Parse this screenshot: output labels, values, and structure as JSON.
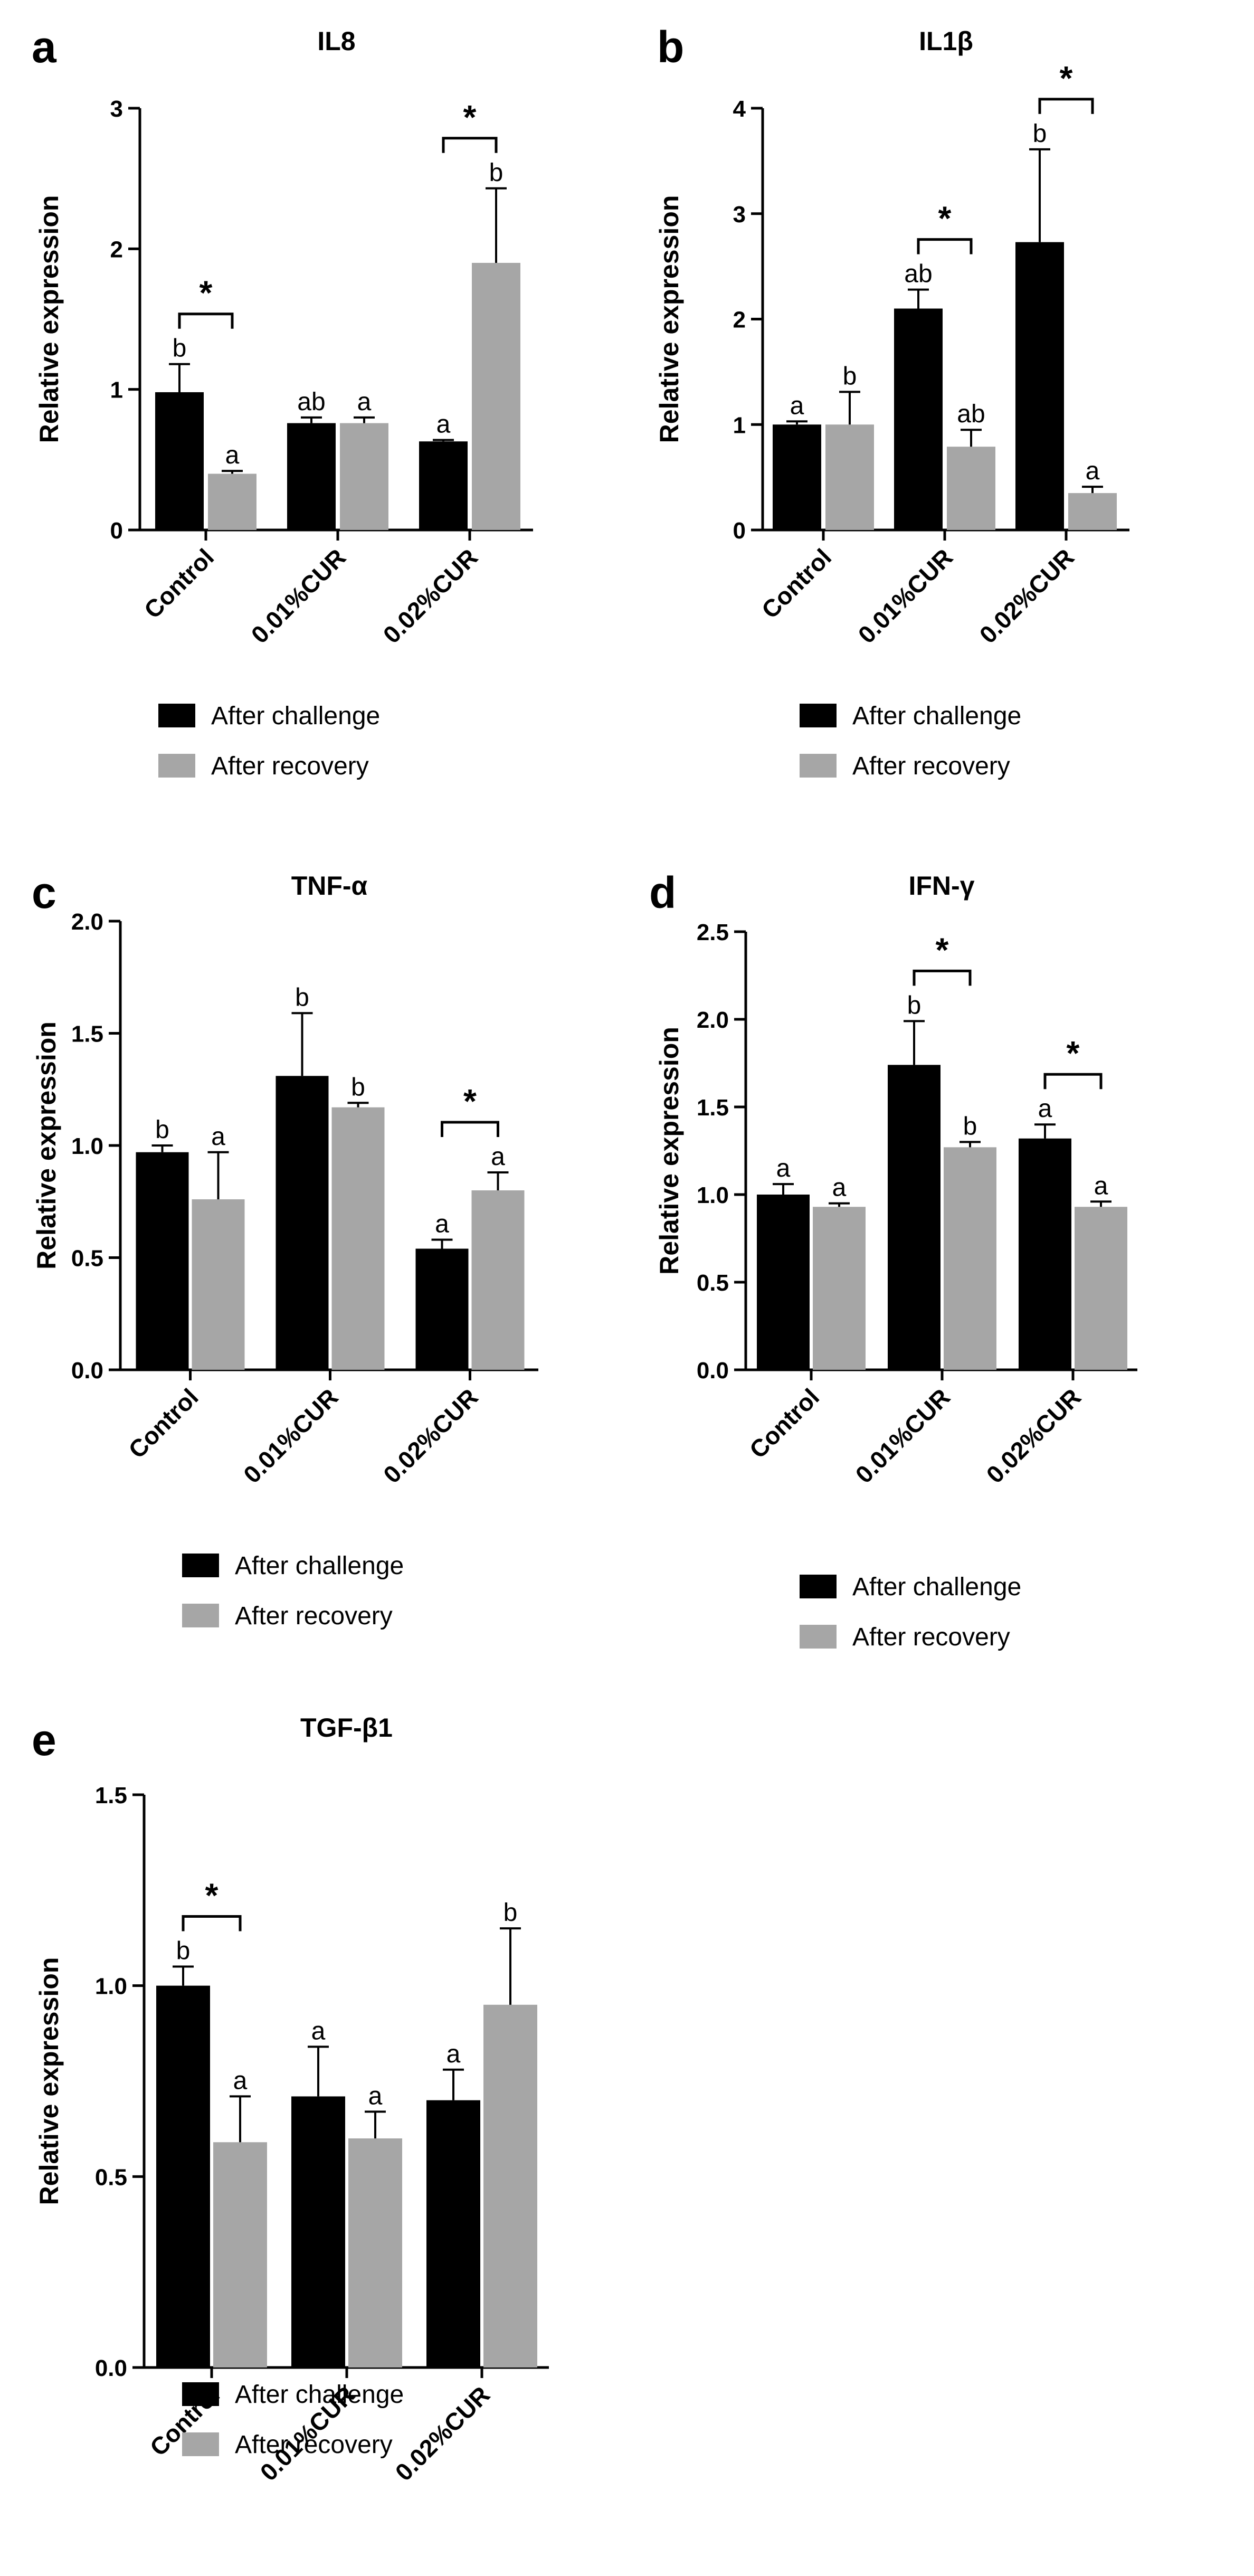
{
  "figure": {
    "xlabel_default": "",
    "legend_labels": [
      "After challenge",
      "After recovery"
    ]
  },
  "colors": {
    "after_challenge": "#000000",
    "after_recovery": "#a6a6a6",
    "axis": "#000000",
    "text": "#000000"
  },
  "chart_data": [
    {
      "panel": "a",
      "type": "bar",
      "title": "IL8",
      "ylabel": "Relative expression",
      "xlabel": "",
      "ylim": [
        0,
        3
      ],
      "yticks": [
        0,
        1,
        2,
        3
      ],
      "categories": [
        "Control",
        "0.01%CUR",
        "0.02%CUR"
      ],
      "series": [
        {
          "name": "After challenge",
          "values": [
            0.98,
            0.76,
            0.63
          ],
          "errors": [
            0.2,
            0.04,
            0.01
          ],
          "letters": [
            "b",
            "ab",
            "a"
          ]
        },
        {
          "name": "After recovery",
          "values": [
            0.4,
            0.76,
            1.9
          ],
          "errors": [
            0.02,
            0.04,
            0.53
          ],
          "letters": [
            "a",
            "a",
            "b"
          ]
        }
      ],
      "significance": [
        {
          "category": "Control",
          "label": "*"
        },
        {
          "category": "0.02%CUR",
          "label": "*"
        }
      ],
      "legend": [
        "After challenge",
        "After recovery"
      ]
    },
    {
      "panel": "b",
      "type": "bar",
      "title": "IL1β",
      "ylabel": "Relative expression",
      "xlabel": "",
      "ylim": [
        0,
        4
      ],
      "yticks": [
        0,
        1,
        2,
        3,
        4
      ],
      "categories": [
        "Control",
        "0.01%CUR",
        "0.02%CUR"
      ],
      "series": [
        {
          "name": "After challenge",
          "values": [
            1.0,
            2.1,
            2.73
          ],
          "errors": [
            0.03,
            0.18,
            0.88
          ],
          "letters": [
            "a",
            "ab",
            "b"
          ]
        },
        {
          "name": "After recovery",
          "values": [
            1.0,
            0.79,
            0.35
          ],
          "errors": [
            0.31,
            0.16,
            0.06
          ],
          "letters": [
            "b",
            "ab",
            "a"
          ]
        }
      ],
      "significance": [
        {
          "category": "0.01%CUR",
          "label": "*"
        },
        {
          "category": "0.02%CUR",
          "label": "*"
        }
      ],
      "legend": [
        "After challenge",
        "After recovery"
      ]
    },
    {
      "panel": "c",
      "type": "bar",
      "title": "TNF-α",
      "ylabel": "Relative expression",
      "xlabel": "",
      "ylim": [
        0,
        2
      ],
      "yticks": [
        "0.0",
        "0.5",
        "1.0",
        "1.5",
        "2.0"
      ],
      "categories": [
        "Control",
        "0.01%CUR",
        "0.02%CUR"
      ],
      "series": [
        {
          "name": "After challenge",
          "values": [
            0.97,
            1.31,
            0.54
          ],
          "errors": [
            0.03,
            0.28,
            0.04
          ],
          "letters": [
            "b",
            "b",
            "a"
          ]
        },
        {
          "name": "After recovery",
          "values": [
            0.76,
            1.17,
            0.8
          ],
          "errors": [
            0.21,
            0.02,
            0.08
          ],
          "letters": [
            "a",
            "b",
            "a"
          ]
        }
      ],
      "significance": [
        {
          "category": "0.02%CUR",
          "label": "*"
        }
      ],
      "legend": [
        "After challenge",
        "After recovery"
      ]
    },
    {
      "panel": "d",
      "type": "bar",
      "title": "IFN-γ",
      "ylabel": "Relative expression",
      "xlabel": "",
      "ylim": [
        0,
        2.5
      ],
      "yticks": [
        "0.0",
        "0.5",
        "1.0",
        "1.5",
        "2.0",
        "2.5"
      ],
      "categories": [
        "Control",
        "0.01%CUR",
        "0.02%CUR"
      ],
      "series": [
        {
          "name": "After challenge",
          "values": [
            1.0,
            1.74,
            1.32
          ],
          "errors": [
            0.06,
            0.25,
            0.08
          ],
          "letters": [
            "a",
            "b",
            "a"
          ]
        },
        {
          "name": "After recovery",
          "values": [
            0.93,
            1.27,
            0.93
          ],
          "errors": [
            0.02,
            0.03,
            0.03
          ],
          "letters": [
            "a",
            "b",
            "a"
          ]
        }
      ],
      "significance": [
        {
          "category": "0.01%CUR",
          "label": "*"
        },
        {
          "category": "0.02%CUR",
          "label": "*"
        }
      ],
      "legend": [
        "After challenge",
        "After recovery"
      ]
    },
    {
      "panel": "e",
      "type": "bar",
      "title": "TGF-β1",
      "ylabel": "Relative expression",
      "xlabel": "",
      "ylim": [
        0,
        1.5
      ],
      "yticks": [
        "0.0",
        "0.5",
        "1.0",
        "1.5"
      ],
      "categories": [
        "Control",
        "0.01%CUR",
        "0.02%CUR"
      ],
      "series": [
        {
          "name": "After challenge",
          "values": [
            1.0,
            0.71,
            0.7
          ],
          "errors": [
            0.05,
            0.13,
            0.08
          ],
          "letters": [
            "b",
            "a",
            "a"
          ]
        },
        {
          "name": "After recovery",
          "values": [
            0.59,
            0.6,
            0.95
          ],
          "errors": [
            0.12,
            0.07,
            0.2
          ],
          "letters": [
            "a",
            "a",
            "b"
          ]
        }
      ],
      "significance": [
        {
          "category": "Control",
          "label": "*"
        }
      ],
      "legend": [
        "After challenge",
        "After recovery"
      ]
    }
  ]
}
